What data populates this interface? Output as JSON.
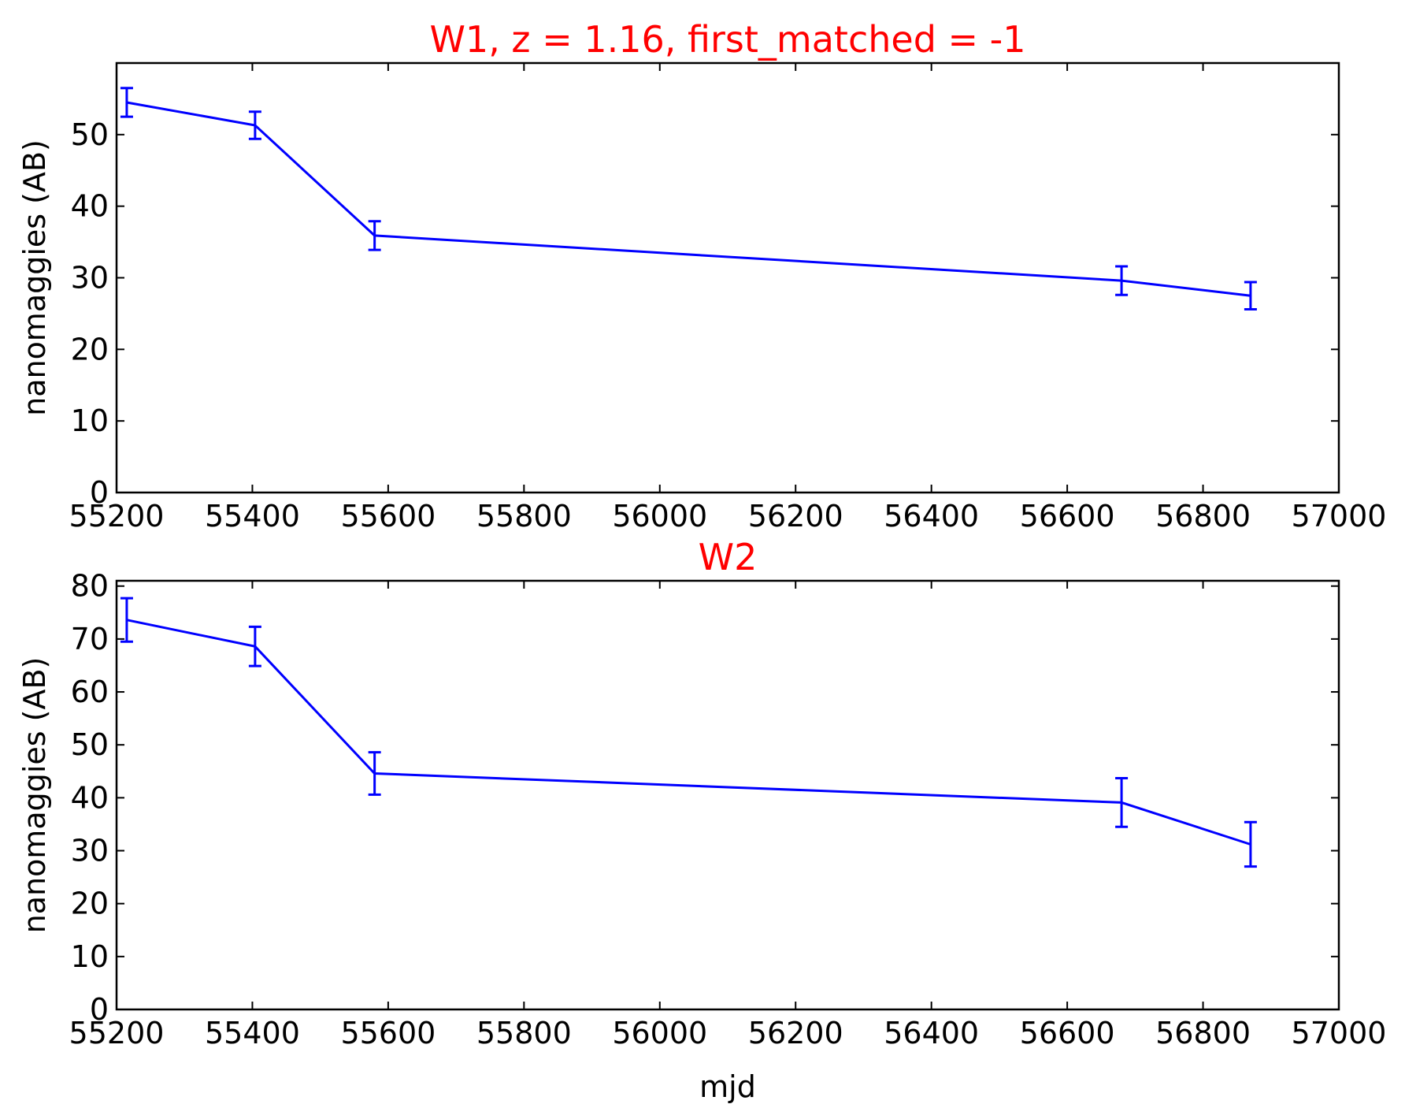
{
  "figure": {
    "xlabel": "mjd"
  },
  "chart_data": [
    {
      "type": "line",
      "title": "W1, z = 1.16, first_matched = -1",
      "title_color": "#ff0000",
      "line_color": "#0000ff",
      "xlabel": "",
      "ylabel": "nanomaggies (AB)",
      "xlim": [
        55200,
        57000
      ],
      "ylim": [
        0,
        60
      ],
      "xticks": [
        55200,
        55400,
        55600,
        55800,
        56000,
        56200,
        56400,
        56600,
        56800,
        57000
      ],
      "yticks": [
        0,
        10,
        20,
        30,
        40,
        50
      ],
      "grid": false,
      "x": [
        55215,
        55404,
        55580,
        56680,
        56870
      ],
      "y": [
        54.5,
        51.3,
        35.9,
        29.6,
        27.5
      ],
      "yerr": [
        2.0,
        1.9,
        2.0,
        2.0,
        1.9
      ]
    },
    {
      "type": "line",
      "title": "W2",
      "title_color": "#ff0000",
      "line_color": "#0000ff",
      "xlabel": "mjd",
      "ylabel": "nanomaggies (AB)",
      "xlim": [
        55200,
        57000
      ],
      "ylim": [
        0,
        81
      ],
      "xticks": [
        55200,
        55400,
        55600,
        55800,
        56000,
        56200,
        56400,
        56600,
        56800,
        57000
      ],
      "yticks": [
        0,
        10,
        20,
        30,
        40,
        50,
        60,
        70,
        80
      ],
      "grid": false,
      "x": [
        55215,
        55404,
        55580,
        56680,
        56870
      ],
      "y": [
        73.6,
        68.6,
        44.6,
        39.1,
        31.2
      ],
      "yerr": [
        4.1,
        3.7,
        4.0,
        4.6,
        4.2
      ]
    }
  ]
}
